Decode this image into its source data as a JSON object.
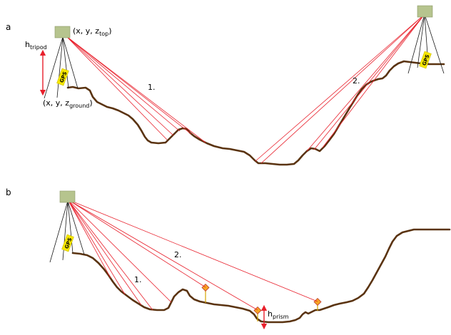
{
  "panels": [
    {
      "label": "a",
      "ray_group_1": "1.",
      "ray_group_2": "2.",
      "top_point_label": {
        "prefix": "(x, y, z",
        "sub": "top",
        "suffix": ")"
      },
      "ground_point_label": {
        "prefix": "(x, y, z",
        "sub": "ground",
        "suffix": ")"
      },
      "tripod_height_label": {
        "main": "h",
        "sub": "tripod"
      },
      "gps_label": "GPS"
    },
    {
      "label": "b",
      "ray_group_1": "1.",
      "ray_group_2": "2.",
      "prism_height_label": {
        "main": "h",
        "sub": "prism"
      },
      "gps_label": "GPS"
    }
  ],
  "colors": {
    "terrain": "#5a3310",
    "rays": "#e8202c",
    "instrument": "#b6c48e",
    "gps_tag": "#f5e600",
    "prism": "#f5a623",
    "height_arrow": "#e8202c"
  }
}
